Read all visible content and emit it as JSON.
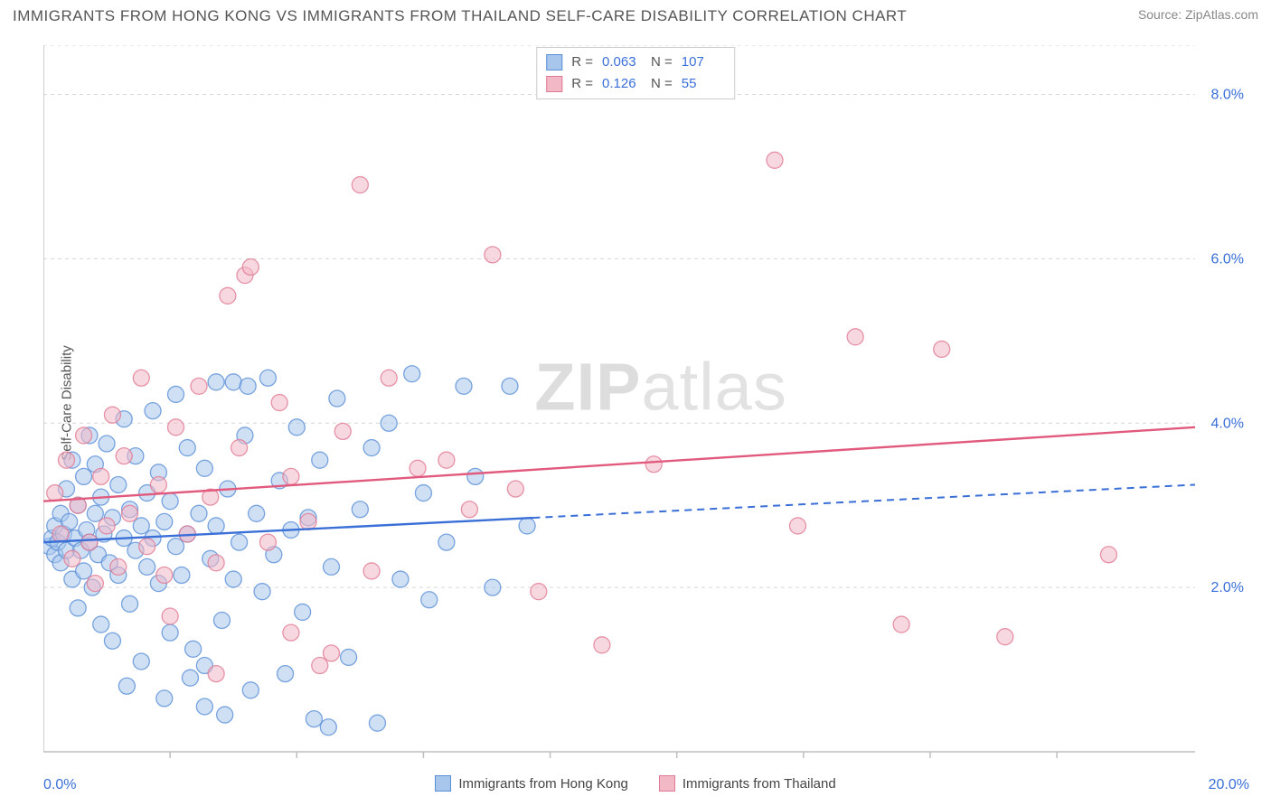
{
  "title": "IMMIGRANTS FROM HONG KONG VS IMMIGRANTS FROM THAILAND SELF-CARE DISABILITY CORRELATION CHART",
  "source_label": "Source: ",
  "source_name": "ZipAtlas.com",
  "ylabel": "Self-Care Disability",
  "watermark": {
    "bold": "ZIP",
    "rest": "atlas"
  },
  "chart": {
    "type": "scatter",
    "background_color": "#ffffff",
    "grid_color": "#d8d8d8",
    "grid_dash": "4,4",
    "axis_color": "#bfbfbf",
    "tick_label_color": "#3a6fd8",
    "tick_fontsize": 16,
    "label_fontsize": 15,
    "xlim": [
      0,
      20
    ],
    "ylim": [
      0,
      8.6
    ],
    "x_min_label": "0.0%",
    "x_max_label": "20.0%",
    "y_ticks": [
      2.0,
      4.0,
      6.0,
      8.0
    ],
    "y_tick_labels": [
      "2.0%",
      "4.0%",
      "6.0%",
      "8.0%"
    ],
    "x_ticks_minor": [
      2.2,
      4.4,
      6.6,
      8.8,
      11.0,
      13.2,
      15.4,
      17.6
    ],
    "marker_radius": 9,
    "marker_opacity": 0.55,
    "marker_stroke_width": 1.3,
    "trendline_width_solid": 2.4,
    "trendline_width_dash": 2
  },
  "series": [
    {
      "name": "Immigrants from Hong Kong",
      "fill": "#a8c6ec",
      "stroke": "#5a8fd6",
      "line_color": "#3a6fd8",
      "R": "0.063",
      "N": "107",
      "trend": {
        "y_at_x0": 2.55,
        "y_at_x20": 3.25,
        "solid_until_x": 8.5
      },
      "points": [
        [
          0.1,
          2.5
        ],
        [
          0.15,
          2.6
        ],
        [
          0.2,
          2.4
        ],
        [
          0.2,
          2.75
        ],
        [
          0.25,
          2.55
        ],
        [
          0.3,
          2.9
        ],
        [
          0.3,
          2.3
        ],
        [
          0.35,
          2.65
        ],
        [
          0.4,
          3.2
        ],
        [
          0.4,
          2.45
        ],
        [
          0.45,
          2.8
        ],
        [
          0.5,
          3.55
        ],
        [
          0.5,
          2.1
        ],
        [
          0.55,
          2.6
        ],
        [
          0.6,
          3.0
        ],
        [
          0.6,
          1.75
        ],
        [
          0.65,
          2.45
        ],
        [
          0.7,
          3.35
        ],
        [
          0.7,
          2.2
        ],
        [
          0.75,
          2.7
        ],
        [
          0.8,
          3.85
        ],
        [
          0.8,
          2.55
        ],
        [
          0.85,
          2.0
        ],
        [
          0.9,
          2.9
        ],
        [
          0.9,
          3.5
        ],
        [
          0.95,
          2.4
        ],
        [
          1.0,
          3.1
        ],
        [
          1.0,
          1.55
        ],
        [
          1.05,
          2.65
        ],
        [
          1.1,
          3.75
        ],
        [
          1.15,
          2.3
        ],
        [
          1.2,
          2.85
        ],
        [
          1.2,
          1.35
        ],
        [
          1.3,
          3.25
        ],
        [
          1.3,
          2.15
        ],
        [
          1.4,
          2.6
        ],
        [
          1.4,
          4.05
        ],
        [
          1.5,
          2.95
        ],
        [
          1.5,
          1.8
        ],
        [
          1.6,
          2.45
        ],
        [
          1.6,
          3.6
        ],
        [
          1.7,
          2.75
        ],
        [
          1.7,
          1.1
        ],
        [
          1.8,
          3.15
        ],
        [
          1.8,
          2.25
        ],
        [
          1.9,
          4.15
        ],
        [
          1.9,
          2.6
        ],
        [
          2.0,
          2.05
        ],
        [
          2.0,
          3.4
        ],
        [
          2.1,
          2.8
        ],
        [
          2.2,
          1.45
        ],
        [
          2.2,
          3.05
        ],
        [
          2.3,
          2.5
        ],
        [
          2.3,
          4.35
        ],
        [
          2.4,
          2.15
        ],
        [
          2.5,
          3.7
        ],
        [
          2.5,
          2.65
        ],
        [
          2.6,
          1.25
        ],
        [
          2.7,
          2.9
        ],
        [
          2.8,
          3.45
        ],
        [
          2.8,
          0.55
        ],
        [
          2.9,
          2.35
        ],
        [
          3.0,
          4.5
        ],
        [
          3.0,
          2.75
        ],
        [
          3.1,
          1.6
        ],
        [
          3.2,
          3.2
        ],
        [
          3.3,
          2.1
        ],
        [
          3.3,
          4.5
        ],
        [
          3.4,
          2.55
        ],
        [
          3.5,
          3.85
        ],
        [
          3.6,
          0.75
        ],
        [
          3.7,
          2.9
        ],
        [
          3.8,
          1.95
        ],
        [
          3.9,
          4.55
        ],
        [
          4.0,
          2.4
        ],
        [
          4.1,
          3.3
        ],
        [
          4.2,
          0.95
        ],
        [
          4.3,
          2.7
        ],
        [
          4.4,
          3.95
        ],
        [
          4.5,
          1.7
        ],
        [
          4.6,
          2.85
        ],
        [
          4.7,
          0.4
        ],
        [
          4.8,
          3.55
        ],
        [
          5.0,
          2.25
        ],
        [
          5.1,
          4.3
        ],
        [
          5.3,
          1.15
        ],
        [
          5.5,
          2.95
        ],
        [
          5.7,
          3.7
        ],
        [
          5.8,
          0.35
        ],
        [
          6.0,
          4.0
        ],
        [
          6.2,
          2.1
        ],
        [
          6.4,
          4.6
        ],
        [
          6.6,
          3.15
        ],
        [
          6.7,
          1.85
        ],
        [
          7.0,
          2.55
        ],
        [
          7.3,
          4.45
        ],
        [
          7.5,
          3.35
        ],
        [
          7.8,
          2.0
        ],
        [
          8.1,
          4.45
        ],
        [
          8.4,
          2.75
        ],
        [
          3.15,
          0.45
        ],
        [
          2.55,
          0.9
        ],
        [
          4.95,
          0.3
        ],
        [
          2.1,
          0.65
        ],
        [
          2.8,
          1.05
        ],
        [
          1.45,
          0.8
        ],
        [
          3.55,
          4.45
        ]
      ]
    },
    {
      "name": "Immigrants from Thailand",
      "fill": "#f2b8c6",
      "stroke": "#e07a94",
      "line_color": "#e15a7e",
      "R": "0.126",
      "N": "55",
      "trend": {
        "y_at_x0": 3.05,
        "y_at_x20": 3.95,
        "solid_until_x": 20
      },
      "points": [
        [
          0.2,
          3.15
        ],
        [
          0.3,
          2.65
        ],
        [
          0.4,
          3.55
        ],
        [
          0.5,
          2.35
        ],
        [
          0.6,
          3.0
        ],
        [
          0.7,
          3.85
        ],
        [
          0.8,
          2.55
        ],
        [
          0.9,
          2.05
        ],
        [
          1.0,
          3.35
        ],
        [
          1.1,
          2.75
        ],
        [
          1.2,
          4.1
        ],
        [
          1.3,
          2.25
        ],
        [
          1.4,
          3.6
        ],
        [
          1.5,
          2.9
        ],
        [
          1.7,
          4.55
        ],
        [
          1.8,
          2.5
        ],
        [
          2.0,
          3.25
        ],
        [
          2.1,
          2.15
        ],
        [
          2.3,
          3.95
        ],
        [
          2.5,
          2.65
        ],
        [
          2.7,
          4.45
        ],
        [
          2.9,
          3.1
        ],
        [
          3.0,
          2.3
        ],
        [
          3.2,
          5.55
        ],
        [
          3.4,
          3.7
        ],
        [
          3.5,
          5.8
        ],
        [
          3.6,
          5.9
        ],
        [
          3.9,
          2.55
        ],
        [
          4.1,
          4.25
        ],
        [
          4.3,
          3.35
        ],
        [
          4.6,
          2.8
        ],
        [
          5.0,
          1.2
        ],
        [
          5.2,
          3.9
        ],
        [
          5.5,
          6.9
        ],
        [
          5.7,
          2.2
        ],
        [
          6.0,
          4.55
        ],
        [
          6.5,
          3.45
        ],
        [
          7.0,
          3.55
        ],
        [
          7.4,
          2.95
        ],
        [
          7.8,
          6.05
        ],
        [
          8.2,
          3.2
        ],
        [
          8.6,
          1.95
        ],
        [
          9.7,
          1.3
        ],
        [
          10.6,
          3.5
        ],
        [
          12.7,
          7.2
        ],
        [
          13.1,
          2.75
        ],
        [
          14.1,
          5.05
        ],
        [
          14.9,
          1.55
        ],
        [
          15.6,
          4.9
        ],
        [
          16.7,
          1.4
        ],
        [
          18.5,
          2.4
        ],
        [
          4.8,
          1.05
        ],
        [
          3.0,
          0.95
        ],
        [
          4.3,
          1.45
        ],
        [
          2.2,
          1.65
        ]
      ]
    }
  ],
  "stats_labels": {
    "R": "R =",
    "N": "N ="
  },
  "footer_legend": [
    {
      "label": "Immigrants from Hong Kong",
      "fill": "#a8c6ec",
      "stroke": "#5a8fd6"
    },
    {
      "label": "Immigrants from Thailand",
      "fill": "#f2b8c6",
      "stroke": "#e07a94"
    }
  ]
}
